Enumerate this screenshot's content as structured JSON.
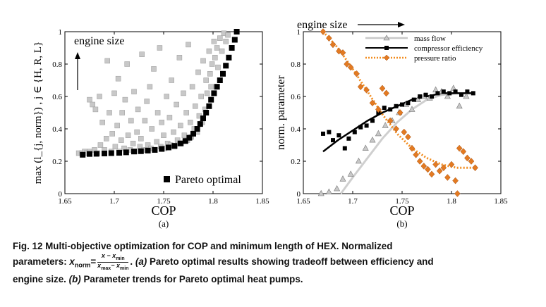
{
  "chart_data": [
    {
      "type": "scatter",
      "panel_label": "(a)",
      "xlabel": "COP",
      "ylabel": "max (l_{j, norm}) , j ∈ {H, R, L}",
      "annotation": "engine size",
      "xlim": [
        1.65,
        1.85
      ],
      "ylim": [
        0,
        1
      ],
      "xticks": [
        "1.65",
        "1.7",
        "1.75",
        "1.8",
        "1.85"
      ],
      "yticks": [
        "0",
        "0.2",
        "0.4",
        "0.6",
        "0.8",
        "1"
      ],
      "grid": false,
      "legend_position": "bottom-right",
      "series": [
        {
          "name": "",
          "color": "#c8c8c8",
          "points": [
            [
              1.664,
              0.25
            ],
            [
              1.667,
              0.25
            ],
            [
              1.67,
              0.26
            ],
            [
              1.672,
              0.25
            ],
            [
              1.675,
              0.26
            ],
            [
              1.675,
              0.58
            ],
            [
              1.678,
              0.55
            ],
            [
              1.68,
              0.27
            ],
            [
              1.681,
              0.52
            ],
            [
              1.683,
              0.25
            ],
            [
              1.685,
              0.6
            ],
            [
              1.686,
              0.3
            ],
            [
              1.688,
              0.44
            ],
            [
              1.69,
              0.27
            ],
            [
              1.692,
              0.34
            ],
            [
              1.693,
              0.82
            ],
            [
              1.695,
              0.5
            ],
            [
              1.697,
              0.26
            ],
            [
              1.698,
              0.37
            ],
            [
              1.7,
              0.62
            ],
            [
              1.701,
              0.29
            ],
            [
              1.703,
              0.42
            ],
            [
              1.704,
              0.71
            ],
            [
              1.705,
              0.26
            ],
            [
              1.707,
              0.33
            ],
            [
              1.708,
              0.5
            ],
            [
              1.71,
              0.28
            ],
            [
              1.711,
              0.58
            ],
            [
              1.713,
              0.8
            ],
            [
              1.714,
              0.36
            ],
            [
              1.716,
              0.27
            ],
            [
              1.717,
              0.45
            ],
            [
              1.719,
              0.31
            ],
            [
              1.72,
              0.63
            ],
            [
              1.721,
              0.26
            ],
            [
              1.723,
              0.38
            ],
            [
              1.724,
              0.52
            ],
            [
              1.726,
              0.29
            ],
            [
              1.727,
              0.34
            ],
            [
              1.728,
              0.86
            ],
            [
              1.73,
              0.27
            ],
            [
              1.731,
              0.45
            ],
            [
              1.733,
              0.57
            ],
            [
              1.734,
              0.3
            ],
            [
              1.736,
              0.66
            ],
            [
              1.737,
              0.28
            ],
            [
              1.738,
              0.4
            ],
            [
              1.74,
              0.77
            ],
            [
              1.741,
              0.27
            ],
            [
              1.743,
              0.32
            ],
            [
              1.744,
              0.5
            ],
            [
              1.746,
              0.9
            ],
            [
              1.747,
              0.29
            ],
            [
              1.748,
              0.44
            ],
            [
              1.75,
              0.36
            ],
            [
              1.751,
              0.28
            ],
            [
              1.753,
              0.6
            ],
            [
              1.754,
              0.31
            ],
            [
              1.756,
              0.47
            ],
            [
              1.757,
              0.3
            ],
            [
              1.758,
              0.7
            ],
            [
              1.76,
              0.38
            ],
            [
              1.761,
              0.29
            ],
            [
              1.763,
              0.55
            ],
            [
              1.764,
              0.33
            ],
            [
              1.766,
              0.84
            ],
            [
              1.767,
              0.42
            ],
            [
              1.768,
              0.31
            ],
            [
              1.77,
              0.62
            ],
            [
              1.771,
              0.36
            ],
            [
              1.773,
              0.5
            ],
            [
              1.774,
              0.33
            ],
            [
              1.775,
              0.92
            ],
            [
              1.777,
              0.44
            ],
            [
              1.778,
              0.35
            ],
            [
              1.779,
              0.66
            ],
            [
              1.781,
              0.4
            ],
            [
              1.782,
              0.54
            ],
            [
              1.784,
              0.38
            ],
            [
              1.785,
              0.75
            ],
            [
              1.786,
              0.48
            ],
            [
              1.788,
              0.6
            ],
            [
              1.789,
              0.44
            ],
            [
              1.79,
              0.82
            ],
            [
              1.792,
              0.52
            ],
            [
              1.793,
              0.7
            ],
            [
              1.794,
              0.62
            ],
            [
              1.796,
              0.88
            ],
            [
              1.797,
              0.74
            ],
            [
              1.798,
              0.66
            ],
            [
              1.799,
              0.8
            ],
            [
              1.801,
              0.94
            ],
            [
              1.802,
              0.84
            ],
            [
              1.804,
              0.9
            ],
            [
              1.805,
              0.78
            ],
            [
              1.807,
              0.96
            ],
            [
              1.809,
              0.88
            ],
            [
              1.811,
              0.99
            ],
            [
              1.813,
              0.94
            ],
            [
              1.815,
              0.98
            ]
          ]
        },
        {
          "name": "Pareto optimal",
          "color": "#000000",
          "points": [
            [
              1.668,
              0.24
            ],
            [
              1.675,
              0.245
            ],
            [
              1.682,
              0.246
            ],
            [
              1.69,
              0.248
            ],
            [
              1.697,
              0.25
            ],
            [
              1.705,
              0.252
            ],
            [
              1.712,
              0.255
            ],
            [
              1.72,
              0.26
            ],
            [
              1.727,
              0.262
            ],
            [
              1.734,
              0.266
            ],
            [
              1.741,
              0.27
            ],
            [
              1.748,
              0.276
            ],
            [
              1.755,
              0.285
            ],
            [
              1.761,
              0.295
            ],
            [
              1.767,
              0.31
            ],
            [
              1.772,
              0.325
            ],
            [
              1.776,
              0.345
            ],
            [
              1.78,
              0.37
            ],
            [
              1.784,
              0.4
            ],
            [
              1.787,
              0.43
            ],
            [
              1.79,
              0.465
            ],
            [
              1.793,
              0.5
            ],
            [
              1.796,
              0.54
            ],
            [
              1.798,
              0.58
            ],
            [
              1.801,
              0.62
            ],
            [
              1.804,
              0.66
            ],
            [
              1.807,
              0.7
            ],
            [
              1.81,
              0.74
            ],
            [
              1.813,
              0.79
            ],
            [
              1.816,
              0.84
            ],
            [
              1.819,
              0.9
            ],
            [
              1.822,
              0.95
            ],
            [
              1.824,
              1.0
            ]
          ]
        }
      ]
    },
    {
      "type": "scatter",
      "panel_label": "(b)",
      "xlabel": "COP",
      "ylabel": "norm. parameter",
      "annotation": "engine size",
      "xlim": [
        1.65,
        1.85
      ],
      "ylim": [
        0,
        1
      ],
      "xticks": [
        "1.65",
        "1.7",
        "1.75",
        "1.8",
        "1.85"
      ],
      "yticks": [
        "0",
        "0.2",
        "0.4",
        "0.6",
        "0.8",
        "1"
      ],
      "grid": false,
      "legend_position": "top-right",
      "series": [
        {
          "name": "mass flow",
          "color": "#aaaaaa",
          "marker": "triangle",
          "points": [
            [
              1.668,
              0.0
            ],
            [
              1.676,
              0.01
            ],
            [
              1.684,
              0.03
            ],
            [
              1.69,
              0.09
            ],
            [
              1.698,
              0.12
            ],
            [
              1.706,
              0.2
            ],
            [
              1.713,
              0.28
            ],
            [
              1.72,
              0.33
            ],
            [
              1.726,
              0.37
            ],
            [
              1.733,
              0.42
            ],
            [
              1.74,
              0.45
            ],
            [
              1.747,
              0.5
            ],
            [
              1.754,
              0.55
            ],
            [
              1.76,
              0.52
            ],
            [
              1.766,
              0.58
            ],
            [
              1.772,
              0.6
            ],
            [
              1.778,
              0.59
            ],
            [
              1.784,
              0.64
            ],
            [
              1.79,
              0.63
            ],
            [
              1.796,
              0.6
            ],
            [
              1.802,
              0.65
            ],
            [
              1.808,
              0.54
            ],
            [
              1.815,
              0.6
            ]
          ],
          "trend": [
            [
              1.688,
              0.0
            ],
            [
              1.7,
              0.1
            ],
            [
              1.715,
              0.22
            ],
            [
              1.73,
              0.34
            ],
            [
              1.745,
              0.44
            ],
            [
              1.76,
              0.52
            ],
            [
              1.775,
              0.58
            ],
            [
              1.79,
              0.61
            ],
            [
              1.805,
              0.62
            ],
            [
              1.818,
              0.62
            ]
          ]
        },
        {
          "name": "compressor efficiency",
          "color": "#000000",
          "marker": "square",
          "points": [
            [
              1.67,
              0.37
            ],
            [
              1.676,
              0.38
            ],
            [
              1.68,
              0.33
            ],
            [
              1.686,
              0.36
            ],
            [
              1.692,
              0.28
            ],
            [
              1.696,
              0.34
            ],
            [
              1.702,
              0.38
            ],
            [
              1.708,
              0.41
            ],
            [
              1.714,
              0.42
            ],
            [
              1.72,
              0.45
            ],
            [
              1.726,
              0.5
            ],
            [
              1.732,
              0.53
            ],
            [
              1.738,
              0.52
            ],
            [
              1.744,
              0.54
            ],
            [
              1.75,
              0.55
            ],
            [
              1.756,
              0.56
            ],
            [
              1.762,
              0.58
            ],
            [
              1.768,
              0.6
            ],
            [
              1.774,
              0.61
            ],
            [
              1.78,
              0.6
            ],
            [
              1.786,
              0.62
            ],
            [
              1.792,
              0.63
            ],
            [
              1.798,
              0.62
            ],
            [
              1.804,
              0.63
            ],
            [
              1.81,
              0.61
            ],
            [
              1.816,
              0.63
            ],
            [
              1.822,
              0.62
            ]
          ],
          "trend": [
            [
              1.67,
              0.26
            ],
            [
              1.685,
              0.33
            ],
            [
              1.7,
              0.39
            ],
            [
              1.715,
              0.45
            ],
            [
              1.73,
              0.5
            ],
            [
              1.745,
              0.54
            ],
            [
              1.76,
              0.58
            ],
            [
              1.775,
              0.6
            ],
            [
              1.79,
              0.62
            ],
            [
              1.805,
              0.62
            ],
            [
              1.823,
              0.62
            ]
          ]
        },
        {
          "name": "pressure ratio",
          "color": "#e37a22",
          "marker": "diamond",
          "points": [
            [
              1.67,
              1.0
            ],
            [
              1.676,
              0.96
            ],
            [
              1.68,
              0.92
            ],
            [
              1.686,
              0.88
            ],
            [
              1.69,
              0.87
            ],
            [
              1.694,
              0.8
            ],
            [
              1.698,
              0.78
            ],
            [
              1.704,
              0.74
            ],
            [
              1.708,
              0.66
            ],
            [
              1.714,
              0.64
            ],
            [
              1.72,
              0.56
            ],
            [
              1.726,
              0.52
            ],
            [
              1.73,
              0.65
            ],
            [
              1.734,
              0.62
            ],
            [
              1.738,
              0.45
            ],
            [
              1.744,
              0.4
            ],
            [
              1.748,
              0.5
            ],
            [
              1.752,
              0.38
            ],
            [
              1.756,
              0.35
            ],
            [
              1.76,
              0.28
            ],
            [
              1.764,
              0.24
            ],
            [
              1.768,
              0.2
            ],
            [
              1.772,
              0.17
            ],
            [
              1.776,
              0.15
            ],
            [
              1.78,
              0.12
            ],
            [
              1.784,
              0.18
            ],
            [
              1.788,
              0.14
            ],
            [
              1.792,
              0.16
            ],
            [
              1.796,
              0.1
            ],
            [
              1.8,
              0.18
            ],
            [
              1.804,
              0.08
            ],
            [
              1.806,
              0.0
            ],
            [
              1.808,
              0.28
            ],
            [
              1.812,
              0.26
            ],
            [
              1.816,
              0.22
            ],
            [
              1.82,
              0.2
            ],
            [
              1.824,
              0.16
            ]
          ],
          "trend": [
            [
              1.67,
              1.0
            ],
            [
              1.685,
              0.9
            ],
            [
              1.7,
              0.77
            ],
            [
              1.715,
              0.63
            ],
            [
              1.73,
              0.49
            ],
            [
              1.745,
              0.37
            ],
            [
              1.76,
              0.28
            ],
            [
              1.775,
              0.22
            ],
            [
              1.79,
              0.18
            ],
            [
              1.805,
              0.16
            ],
            [
              1.823,
              0.16
            ]
          ]
        }
      ]
    }
  ],
  "caption": {
    "line1": "Fig. 12  Multi-objective optimization for COP and minimum length of HEX. Normalized",
    "line2_prefix": "parameters: ",
    "xnorm": "x",
    "xnorm_sub": "norm",
    "eq": "=",
    "frac_num": "x − x",
    "frac_num_sub": "min",
    "frac_den": "x",
    "frac_den_sub1": "max",
    "frac_den_mid": "− x",
    "frac_den_sub2": "min",
    "period": ". ",
    "panel_a": "(a)",
    "line2_rest": " Pareto optimal results showing tradeoff between efficiency and",
    "line3": "engine size. ",
    "panel_b": "(b)",
    "line3_rest": " Parameter trends for Pareto optimal heat pumps."
  }
}
